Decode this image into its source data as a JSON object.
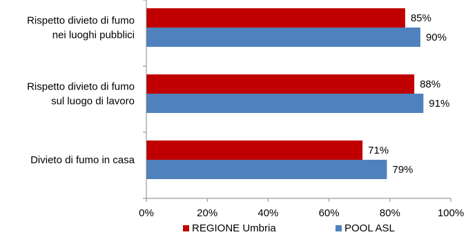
{
  "chart_data": {
    "type": "bar",
    "orientation": "horizontal",
    "title": "",
    "xlabel": "",
    "ylabel": "",
    "categories": [
      [
        "Rispetto divieto di fumo",
        "nei luoghi pubblici"
      ],
      [
        "Rispetto divieto di fumo",
        "sul luogo di lavoro"
      ],
      [
        "Divieto di fumo in casa"
      ]
    ],
    "series": [
      {
        "name": "REGIONE Umbria",
        "color": "#C00000",
        "values": [
          85,
          88,
          71
        ],
        "labels": [
          "85%",
          "88%",
          "71%"
        ]
      },
      {
        "name": "POOL ASL",
        "color": "#4F81BD",
        "values": [
          90,
          91,
          79
        ],
        "labels": [
          "90%",
          "91%",
          "79%"
        ]
      }
    ],
    "xlim": [
      0,
      100
    ],
    "ticks": [
      0,
      20,
      40,
      60,
      80,
      100
    ],
    "tick_labels": [
      "0%",
      "20%",
      "40%",
      "60%",
      "80%",
      "100%"
    ],
    "grid": false,
    "legend": "bottom"
  }
}
